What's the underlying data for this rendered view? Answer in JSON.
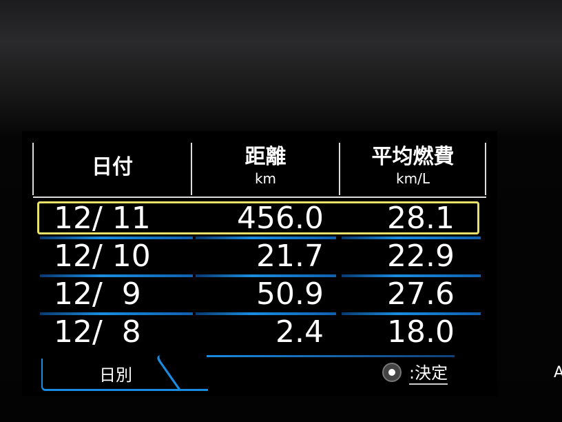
{
  "header": {
    "columns": [
      {
        "title": "日付",
        "unit": ""
      },
      {
        "title": "距離",
        "unit": "km"
      },
      {
        "title": "平均燃費",
        "unit": "km/L"
      }
    ]
  },
  "rows": [
    {
      "date": "12/ 11",
      "distance": "456.0",
      "avg_fuel": "28.1",
      "selected": true
    },
    {
      "date": "12/ 10",
      "distance": "21.7",
      "avg_fuel": "22.9",
      "selected": false
    },
    {
      "date": "12/  9",
      "distance": "50.9",
      "avg_fuel": "27.6",
      "selected": false
    },
    {
      "date": "12/  8",
      "distance": "2.4",
      "avg_fuel": "18.0",
      "selected": false
    }
  ],
  "footer": {
    "tab_label": "日別",
    "action_icon": "dial-knob-icon",
    "action_label": ":決定",
    "edge_text": "A"
  },
  "colors": {
    "accent": "#1a8ce0",
    "selection": "#e8e26a",
    "background": "#000000"
  }
}
